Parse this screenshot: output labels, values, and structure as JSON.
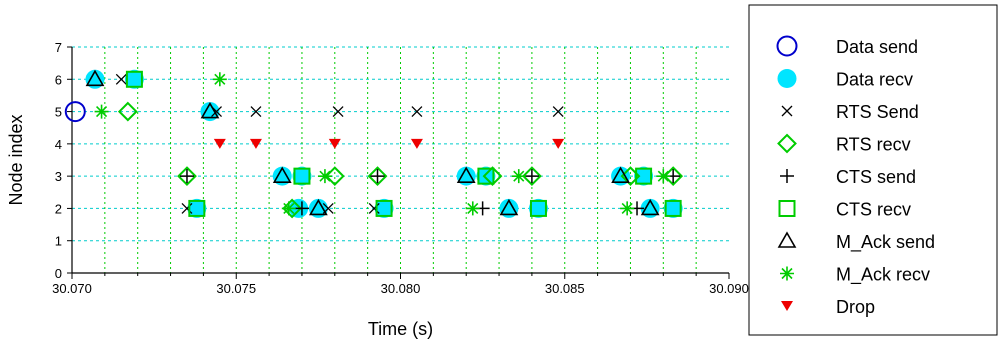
{
  "chart_data": {
    "type": "scatter",
    "xlabel": "Time (s)",
    "ylabel": "Node index",
    "xlim": [
      30.07,
      30.09
    ],
    "ylim": [
      0,
      7
    ],
    "x_ticks": [
      "30.070",
      "30.075",
      "30.080",
      "30.085",
      "30.090"
    ],
    "x_tick_values": [
      30.07,
      30.075,
      30.08,
      30.085,
      30.09
    ],
    "y_ticks": [
      "0",
      "1",
      "2",
      "3",
      "4",
      "5",
      "6",
      "7"
    ],
    "y_tick_values": [
      0,
      1,
      2,
      3,
      4,
      5,
      6,
      7
    ],
    "grid": {
      "horizontal": true,
      "vertical": true,
      "h_color": "#00cccc",
      "v_color": "#00cc00"
    },
    "legend_position": "outside-right",
    "series": [
      {
        "name": "Data send",
        "marker": "circle-open",
        "color": "#0000cc",
        "points": [
          [
            30.0701,
            5
          ]
        ]
      },
      {
        "name": "Data recv",
        "marker": "circle-filled",
        "color": "#00e5ff",
        "points": [
          [
            30.0707,
            6
          ],
          [
            30.0719,
            6
          ],
          [
            30.0742,
            5
          ],
          [
            30.0738,
            2
          ],
          [
            30.0764,
            3
          ],
          [
            30.077,
            3
          ],
          [
            30.0769,
            2
          ],
          [
            30.0775,
            2
          ],
          [
            30.0795,
            2
          ],
          [
            30.082,
            3
          ],
          [
            30.0826,
            3
          ],
          [
            30.0833,
            2
          ],
          [
            30.0842,
            2
          ],
          [
            30.0867,
            3
          ],
          [
            30.0874,
            3
          ],
          [
            30.0876,
            2
          ],
          [
            30.0883,
            2
          ]
        ]
      },
      {
        "name": "RTS Send",
        "marker": "x",
        "color": "#000000",
        "points": [
          [
            30.0715,
            6
          ],
          [
            30.0744,
            5
          ],
          [
            30.0756,
            5
          ],
          [
            30.0781,
            5
          ],
          [
            30.0805,
            5
          ],
          [
            30.0848,
            5
          ],
          [
            30.0735,
            2
          ],
          [
            30.0778,
            2
          ],
          [
            30.0792,
            2
          ]
        ]
      },
      {
        "name": "RTS recv",
        "marker": "diamond-open",
        "color": "#00cc00",
        "points": [
          [
            30.0717,
            5
          ],
          [
            30.0735,
            3
          ],
          [
            30.078,
            3
          ],
          [
            30.0793,
            3
          ],
          [
            30.0767,
            2
          ],
          [
            30.0828,
            3
          ],
          [
            30.084,
            3
          ],
          [
            30.087,
            3
          ],
          [
            30.0883,
            3
          ]
        ]
      },
      {
        "name": "CTS send",
        "marker": "plus",
        "color": "#000000",
        "points": [
          [
            30.0735,
            3
          ],
          [
            30.0793,
            3
          ],
          [
            30.084,
            3
          ],
          [
            30.0883,
            3
          ],
          [
            30.077,
            2
          ],
          [
            30.0825,
            2
          ],
          [
            30.0872,
            2
          ]
        ]
      },
      {
        "name": "CTS recv",
        "marker": "square-open",
        "color": "#00cc00",
        "points": [
          [
            30.0719,
            6
          ],
          [
            30.0738,
            2
          ],
          [
            30.077,
            3
          ],
          [
            30.0795,
            2
          ],
          [
            30.0826,
            3
          ],
          [
            30.0842,
            2
          ],
          [
            30.0874,
            3
          ],
          [
            30.0883,
            2
          ]
        ]
      },
      {
        "name": "M_Ack send",
        "marker": "triangle-open",
        "color": "#000000",
        "points": [
          [
            30.0707,
            6
          ],
          [
            30.0742,
            5
          ],
          [
            30.0764,
            3
          ],
          [
            30.0775,
            2
          ],
          [
            30.082,
            3
          ],
          [
            30.0833,
            2
          ],
          [
            30.0867,
            3
          ],
          [
            30.0876,
            2
          ]
        ]
      },
      {
        "name": "M_Ack recv",
        "marker": "asterisk",
        "color": "#00cc00",
        "points": [
          [
            30.0709,
            5
          ],
          [
            30.0745,
            6
          ],
          [
            30.0766,
            2
          ],
          [
            30.0777,
            3
          ],
          [
            30.0822,
            2
          ],
          [
            30.0836,
            3
          ],
          [
            30.0869,
            2
          ],
          [
            30.088,
            3
          ]
        ]
      },
      {
        "name": "Drop",
        "marker": "triangle-down-filled",
        "color": "#ee0000",
        "points": [
          [
            30.0745,
            4
          ],
          [
            30.0756,
            4
          ],
          [
            30.078,
            4
          ],
          [
            30.0805,
            4
          ],
          [
            30.0848,
            4
          ]
        ]
      }
    ]
  }
}
